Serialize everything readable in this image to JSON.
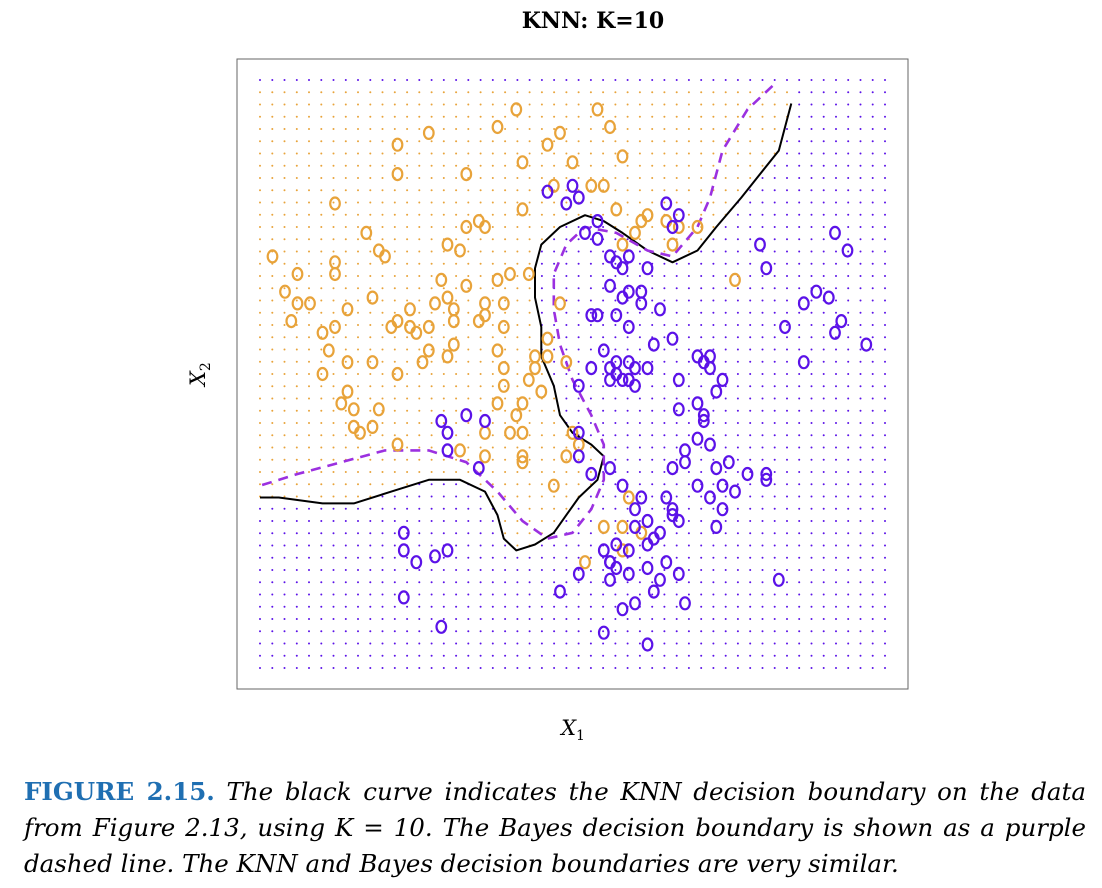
{
  "chart_data": {
    "type": "scatter",
    "title": "KNN: K=10",
    "xlabel": "X_1",
    "ylabel": "X_2",
    "xlim": [
      0,
      1
    ],
    "ylim": [
      0,
      1
    ],
    "grid": "background dot lattice colored by predicted class",
    "legend": "none",
    "colors": {
      "class_orange": "#e8a33a",
      "class_blue": "#5b12e8",
      "knn_boundary": "#000000",
      "bayes_boundary": "#9b30e0",
      "caption_label": "#1f6fb2"
    },
    "marker": "o",
    "series": [
      {
        "points": [
          [
            0.38,
            0.92
          ],
          [
            0.41,
            0.95
          ],
          [
            0.46,
            0.89
          ],
          [
            0.48,
            0.91
          ],
          [
            0.54,
            0.95
          ],
          [
            0.56,
            0.92
          ],
          [
            0.58,
            0.87
          ],
          [
            0.5,
            0.86
          ],
          [
            0.55,
            0.82
          ],
          [
            0.47,
            0.82
          ],
          [
            0.42,
            0.86
          ],
          [
            0.33,
            0.84
          ],
          [
            0.22,
            0.89
          ],
          [
            0.27,
            0.91
          ],
          [
            0.22,
            0.84
          ],
          [
            0.12,
            0.79
          ],
          [
            0.19,
            0.71
          ],
          [
            0.17,
            0.74
          ],
          [
            0.12,
            0.69
          ],
          [
            0.06,
            0.67
          ],
          [
            0.04,
            0.64
          ],
          [
            0.12,
            0.67
          ],
          [
            0.2,
            0.7
          ],
          [
            0.18,
            0.63
          ],
          [
            0.14,
            0.61
          ],
          [
            0.12,
            0.58
          ],
          [
            0.21,
            0.58
          ],
          [
            0.3,
            0.72
          ],
          [
            0.32,
            0.71
          ],
          [
            0.33,
            0.75
          ],
          [
            0.35,
            0.76
          ],
          [
            0.36,
            0.75
          ],
          [
            0.29,
            0.66
          ],
          [
            0.3,
            0.63
          ],
          [
            0.28,
            0.62
          ],
          [
            0.31,
            0.61
          ],
          [
            0.33,
            0.65
          ],
          [
            0.24,
            0.58
          ],
          [
            0.27,
            0.58
          ],
          [
            0.31,
            0.59
          ],
          [
            0.4,
            0.67
          ],
          [
            0.43,
            0.67
          ],
          [
            0.39,
            0.62
          ],
          [
            0.39,
            0.58
          ],
          [
            0.36,
            0.62
          ],
          [
            0.35,
            0.59
          ],
          [
            0.31,
            0.55
          ],
          [
            0.27,
            0.54
          ],
          [
            0.3,
            0.53
          ],
          [
            0.26,
            0.52
          ],
          [
            0.22,
            0.5
          ],
          [
            0.18,
            0.52
          ],
          [
            0.14,
            0.47
          ],
          [
            0.06,
            0.62
          ],
          [
            0.05,
            0.59
          ],
          [
            0.08,
            0.62
          ],
          [
            0.1,
            0.57
          ],
          [
            0.11,
            0.54
          ],
          [
            0.1,
            0.5
          ],
          [
            0.14,
            0.52
          ],
          [
            0.02,
            0.7
          ],
          [
            0.22,
            0.59
          ],
          [
            0.25,
            0.57
          ],
          [
            0.24,
            0.61
          ],
          [
            0.38,
            0.66
          ],
          [
            0.36,
            0.6
          ],
          [
            0.38,
            0.54
          ],
          [
            0.39,
            0.51
          ],
          [
            0.39,
            0.48
          ],
          [
            0.38,
            0.45
          ],
          [
            0.42,
            0.45
          ],
          [
            0.41,
            0.43
          ],
          [
            0.4,
            0.4
          ],
          [
            0.36,
            0.4
          ],
          [
            0.32,
            0.37
          ],
          [
            0.36,
            0.36
          ],
          [
            0.42,
            0.4
          ],
          [
            0.42,
            0.36
          ],
          [
            0.42,
            0.35
          ],
          [
            0.22,
            0.38
          ],
          [
            0.18,
            0.41
          ],
          [
            0.19,
            0.44
          ],
          [
            0.13,
            0.45
          ],
          [
            0.15,
            0.44
          ],
          [
            0.16,
            0.4
          ],
          [
            0.15,
            0.41
          ],
          [
            0.44,
            0.51
          ],
          [
            0.45,
            0.47
          ],
          [
            0.43,
            0.49
          ],
          [
            0.44,
            0.53
          ],
          [
            0.46,
            0.53
          ],
          [
            0.46,
            0.56
          ],
          [
            0.49,
            0.52
          ],
          [
            0.49,
            0.36
          ],
          [
            0.47,
            0.31
          ],
          [
            0.5,
            0.4
          ],
          [
            0.51,
            0.38
          ],
          [
            0.53,
            0.82
          ],
          [
            0.57,
            0.78
          ],
          [
            0.58,
            0.72
          ],
          [
            0.61,
            0.76
          ],
          [
            0.62,
            0.77
          ],
          [
            0.65,
            0.76
          ],
          [
            0.67,
            0.75
          ],
          [
            0.6,
            0.74
          ],
          [
            0.66,
            0.72
          ],
          [
            0.7,
            0.75
          ],
          [
            0.76,
            0.66
          ],
          [
            0.42,
            0.78
          ],
          [
            0.48,
            0.62
          ],
          [
            0.55,
            0.24
          ],
          [
            0.52,
            0.18
          ],
          [
            0.58,
            0.24
          ],
          [
            0.61,
            0.23
          ],
          [
            0.59,
            0.29
          ],
          [
            0.58,
            0.2
          ]
        ]
      },
      {
        "points": [
          [
            0.46,
            0.81
          ],
          [
            0.49,
            0.79
          ],
          [
            0.51,
            0.8
          ],
          [
            0.5,
            0.82
          ],
          [
            0.54,
            0.76
          ],
          [
            0.56,
            0.7
          ],
          [
            0.52,
            0.74
          ],
          [
            0.54,
            0.73
          ],
          [
            0.57,
            0.69
          ],
          [
            0.58,
            0.68
          ],
          [
            0.59,
            0.7
          ],
          [
            0.62,
            0.68
          ],
          [
            0.65,
            0.79
          ],
          [
            0.67,
            0.77
          ],
          [
            0.66,
            0.75
          ],
          [
            0.58,
            0.63
          ],
          [
            0.56,
            0.65
          ],
          [
            0.59,
            0.64
          ],
          [
            0.61,
            0.64
          ],
          [
            0.59,
            0.58
          ],
          [
            0.57,
            0.6
          ],
          [
            0.61,
            0.62
          ],
          [
            0.54,
            0.6
          ],
          [
            0.53,
            0.6
          ],
          [
            0.63,
            0.55
          ],
          [
            0.66,
            0.56
          ],
          [
            0.64,
            0.61
          ],
          [
            0.55,
            0.54
          ],
          [
            0.57,
            0.52
          ],
          [
            0.51,
            0.48
          ],
          [
            0.53,
            0.51
          ],
          [
            0.56,
            0.49
          ],
          [
            0.58,
            0.49
          ],
          [
            0.59,
            0.49
          ],
          [
            0.56,
            0.51
          ],
          [
            0.57,
            0.5
          ],
          [
            0.6,
            0.48
          ],
          [
            0.6,
            0.51
          ],
          [
            0.62,
            0.51
          ],
          [
            0.59,
            0.52
          ],
          [
            0.67,
            0.49
          ],
          [
            0.7,
            0.53
          ],
          [
            0.71,
            0.52
          ],
          [
            0.72,
            0.51
          ],
          [
            0.72,
            0.53
          ],
          [
            0.74,
            0.49
          ],
          [
            0.73,
            0.47
          ],
          [
            0.7,
            0.45
          ],
          [
            0.71,
            0.43
          ],
          [
            0.67,
            0.44
          ],
          [
            0.71,
            0.42
          ],
          [
            0.7,
            0.39
          ],
          [
            0.72,
            0.38
          ],
          [
            0.68,
            0.37
          ],
          [
            0.66,
            0.34
          ],
          [
            0.68,
            0.35
          ],
          [
            0.73,
            0.34
          ],
          [
            0.75,
            0.35
          ],
          [
            0.78,
            0.33
          ],
          [
            0.81,
            0.32
          ],
          [
            0.74,
            0.31
          ],
          [
            0.76,
            0.3
          ],
          [
            0.7,
            0.31
          ],
          [
            0.65,
            0.29
          ],
          [
            0.66,
            0.27
          ],
          [
            0.61,
            0.29
          ],
          [
            0.58,
            0.31
          ],
          [
            0.56,
            0.34
          ],
          [
            0.53,
            0.33
          ],
          [
            0.51,
            0.36
          ],
          [
            0.51,
            0.4
          ],
          [
            0.6,
            0.27
          ],
          [
            0.62,
            0.25
          ],
          [
            0.6,
            0.24
          ],
          [
            0.63,
            0.22
          ],
          [
            0.66,
            0.26
          ],
          [
            0.67,
            0.25
          ],
          [
            0.64,
            0.23
          ],
          [
            0.62,
            0.21
          ],
          [
            0.59,
            0.2
          ],
          [
            0.57,
            0.21
          ],
          [
            0.55,
            0.2
          ],
          [
            0.56,
            0.18
          ],
          [
            0.62,
            0.17
          ],
          [
            0.65,
            0.18
          ],
          [
            0.67,
            0.16
          ],
          [
            0.64,
            0.15
          ],
          [
            0.63,
            0.13
          ],
          [
            0.68,
            0.11
          ],
          [
            0.6,
            0.11
          ],
          [
            0.58,
            0.1
          ],
          [
            0.56,
            0.15
          ],
          [
            0.51,
            0.16
          ],
          [
            0.48,
            0.13
          ],
          [
            0.57,
            0.17
          ],
          [
            0.56,
            0.18
          ],
          [
            0.59,
            0.16
          ],
          [
            0.72,
            0.29
          ],
          [
            0.74,
            0.27
          ],
          [
            0.73,
            0.24
          ],
          [
            0.81,
            0.33
          ],
          [
            0.83,
            0.15
          ],
          [
            0.89,
            0.64
          ],
          [
            0.91,
            0.63
          ],
          [
            0.93,
            0.59
          ],
          [
            0.94,
            0.71
          ],
          [
            0.92,
            0.74
          ],
          [
            0.87,
            0.62
          ],
          [
            0.81,
            0.68
          ],
          [
            0.8,
            0.72
          ],
          [
            0.87,
            0.52
          ],
          [
            0.84,
            0.58
          ],
          [
            0.97,
            0.55
          ],
          [
            0.92,
            0.57
          ],
          [
            0.29,
            0.42
          ],
          [
            0.3,
            0.4
          ],
          [
            0.3,
            0.37
          ],
          [
            0.36,
            0.42
          ],
          [
            0.33,
            0.43
          ],
          [
            0.23,
            0.23
          ],
          [
            0.23,
            0.2
          ],
          [
            0.25,
            0.18
          ],
          [
            0.28,
            0.19
          ],
          [
            0.3,
            0.2
          ],
          [
            0.23,
            0.12
          ],
          [
            0.29,
            0.07
          ],
          [
            0.55,
            0.06
          ],
          [
            0.62,
            0.04
          ],
          [
            0.35,
            0.34
          ]
        ]
      }
    ],
    "boundaries": [
      {
        "style": "solid",
        "points": [
          [
            0.85,
            0.96
          ],
          [
            0.83,
            0.88
          ],
          [
            0.8,
            0.84
          ],
          [
            0.77,
            0.8
          ],
          [
            0.73,
            0.75
          ],
          [
            0.7,
            0.71
          ],
          [
            0.66,
            0.69
          ],
          [
            0.62,
            0.71
          ],
          [
            0.58,
            0.74
          ],
          [
            0.55,
            0.76
          ],
          [
            0.52,
            0.77
          ],
          [
            0.48,
            0.75
          ],
          [
            0.45,
            0.72
          ],
          [
            0.44,
            0.68
          ],
          [
            0.44,
            0.63
          ],
          [
            0.45,
            0.58
          ],
          [
            0.45,
            0.53
          ],
          [
            0.47,
            0.48
          ],
          [
            0.48,
            0.43
          ],
          [
            0.5,
            0.4
          ],
          [
            0.53,
            0.38
          ],
          [
            0.55,
            0.36
          ],
          [
            0.54,
            0.32
          ],
          [
            0.51,
            0.29
          ],
          [
            0.49,
            0.26
          ],
          [
            0.47,
            0.23
          ],
          [
            0.44,
            0.21
          ],
          [
            0.41,
            0.2
          ],
          [
            0.39,
            0.22
          ],
          [
            0.38,
            0.26
          ],
          [
            0.36,
            0.3
          ],
          [
            0.32,
            0.32
          ],
          [
            0.27,
            0.32
          ],
          [
            0.21,
            0.3
          ],
          [
            0.15,
            0.28
          ],
          [
            0.1,
            0.28
          ],
          [
            0.03,
            0.29
          ],
          [
            0.0,
            0.29
          ]
        ]
      },
      {
        "style": "dashed",
        "points": [
          [
            0.82,
            0.99
          ],
          [
            0.78,
            0.95
          ],
          [
            0.74,
            0.88
          ],
          [
            0.72,
            0.8
          ],
          [
            0.7,
            0.75
          ],
          [
            0.66,
            0.7
          ],
          [
            0.62,
            0.71
          ],
          [
            0.57,
            0.74
          ],
          [
            0.52,
            0.75
          ],
          [
            0.49,
            0.72
          ],
          [
            0.47,
            0.67
          ],
          [
            0.47,
            0.61
          ],
          [
            0.48,
            0.55
          ],
          [
            0.5,
            0.49
          ],
          [
            0.53,
            0.43
          ],
          [
            0.55,
            0.38
          ],
          [
            0.55,
            0.32
          ],
          [
            0.53,
            0.27
          ],
          [
            0.5,
            0.23
          ],
          [
            0.46,
            0.22
          ],
          [
            0.42,
            0.25
          ],
          [
            0.38,
            0.3
          ],
          [
            0.33,
            0.35
          ],
          [
            0.27,
            0.37
          ],
          [
            0.2,
            0.37
          ],
          [
            0.13,
            0.35
          ],
          [
            0.06,
            0.33
          ],
          [
            0.0,
            0.31
          ]
        ]
      }
    ]
  },
  "caption": {
    "label": "FIGURE 2.15.",
    "text": "The black curve indicates the KNN decision boundary on the data from Figure 2.13, using K = 10. The Bayes decision boundary is shown as a purple dashed line. The KNN and Bayes decision boundaries are very similar."
  }
}
